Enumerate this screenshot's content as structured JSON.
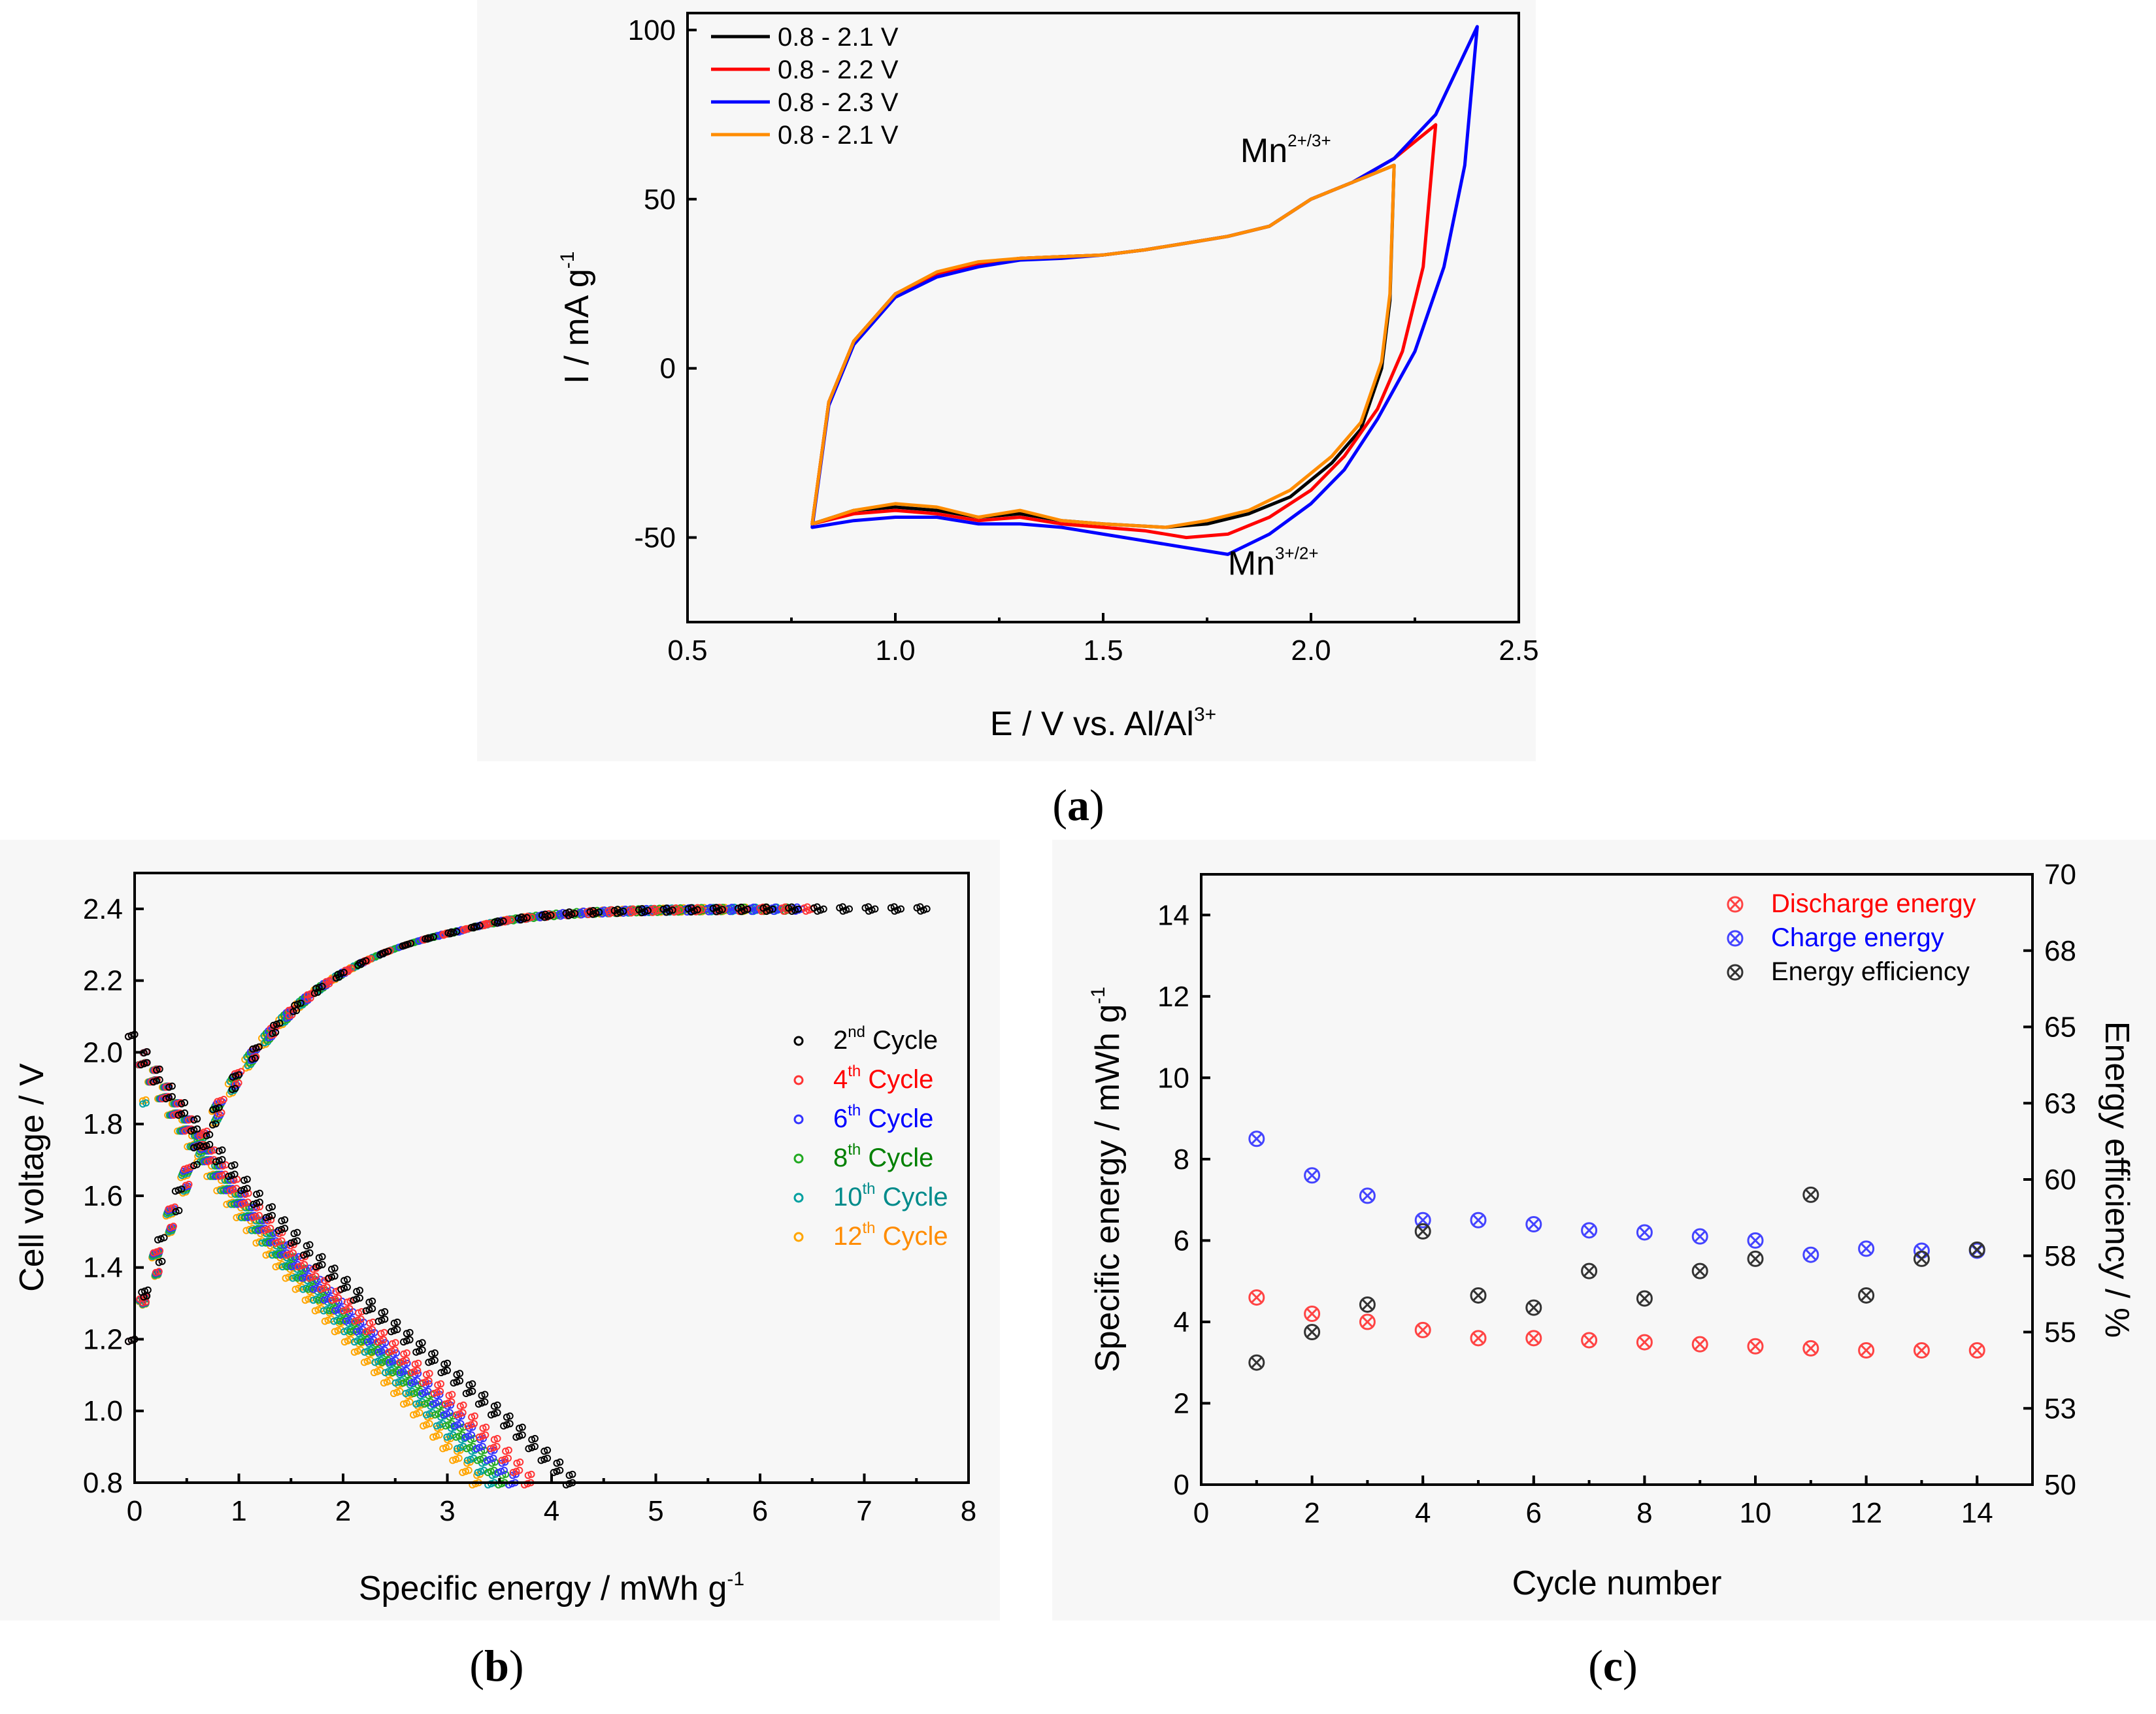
{
  "panels": {
    "a": {
      "label_open": "(",
      "label_letter": "a",
      "label_close": ")"
    },
    "b": {
      "label_open": "(",
      "label_letter": "b",
      "label_close": ")"
    },
    "c": {
      "label_open": "(",
      "label_letter": "c",
      "label_close": ")"
    }
  },
  "chart_data": [
    {
      "id": "a",
      "type": "line",
      "xlabel": {
        "main": "E / V vs. Al/Al",
        "sup": "3+"
      },
      "ylabel": {
        "main": "I / mA g",
        "sup": "-1"
      },
      "xlim": [
        0.5,
        2.5
      ],
      "ylim": [
        -75,
        105
      ],
      "xticks": [
        0.5,
        1.0,
        1.5,
        2.0,
        2.5
      ],
      "xtick_labels": [
        "0.5",
        "1.0",
        "1.5",
        "2.0",
        "2.5"
      ],
      "yticks": [
        -50,
        0,
        50,
        100
      ],
      "ytick_labels": [
        "-50",
        "0",
        "50",
        "100"
      ],
      "legend_position": "top-left",
      "annotations": [
        {
          "base": "Mn",
          "sup": "2+/3+",
          "x": 1.83,
          "y": 61
        },
        {
          "base": "Mn",
          "sup": "3+/2+",
          "x": 1.8,
          "y": -61
        }
      ],
      "series": [
        {
          "name": "0.8 - 2.1 V",
          "color": "#000000",
          "vmax": 2.2,
          "anodic": [
            [
              0.8,
              -46
            ],
            [
              0.84,
              -10
            ],
            [
              0.9,
              8
            ],
            [
              1.0,
              22
            ],
            [
              1.1,
              28
            ],
            [
              1.2,
              31
            ],
            [
              1.3,
              32.5
            ],
            [
              1.4,
              33
            ],
            [
              1.5,
              33.5
            ],
            [
              1.6,
              35
            ],
            [
              1.7,
              37
            ],
            [
              1.8,
              39
            ],
            [
              1.9,
              42
            ],
            [
              1.95,
              46
            ],
            [
              2.0,
              50
            ],
            [
              2.1,
              55
            ],
            [
              2.2,
              60
            ]
          ],
          "cathodic": [
            [
              2.2,
              60
            ],
            [
              2.19,
              20
            ],
            [
              2.17,
              0
            ],
            [
              2.12,
              -18
            ],
            [
              2.05,
              -28
            ],
            [
              1.95,
              -38
            ],
            [
              1.85,
              -43
            ],
            [
              1.75,
              -46
            ],
            [
              1.65,
              -47
            ],
            [
              1.5,
              -46
            ],
            [
              1.4,
              -45
            ],
            [
              1.3,
              -43
            ],
            [
              1.2,
              -44
            ],
            [
              1.1,
              -42
            ],
            [
              1.0,
              -41
            ],
            [
              0.9,
              -42
            ],
            [
              0.8,
              -46
            ]
          ]
        },
        {
          "name": "0.8 - 2.2 V",
          "color": "#ff0000",
          "vmax": 2.3,
          "anodic": [
            [
              0.8,
              -46
            ],
            [
              0.84,
              -10
            ],
            [
              0.9,
              8
            ],
            [
              1.0,
              22
            ],
            [
              1.1,
              28
            ],
            [
              1.2,
              31
            ],
            [
              1.3,
              32.5
            ],
            [
              1.4,
              33
            ],
            [
              1.5,
              33.5
            ],
            [
              1.6,
              35
            ],
            [
              1.7,
              37
            ],
            [
              1.8,
              39
            ],
            [
              1.9,
              42
            ],
            [
              1.95,
              46
            ],
            [
              2.0,
              50
            ],
            [
              2.1,
              55
            ],
            [
              2.2,
              62
            ],
            [
              2.3,
              72
            ]
          ],
          "cathodic": [
            [
              2.3,
              72
            ],
            [
              2.27,
              30
            ],
            [
              2.22,
              5
            ],
            [
              2.16,
              -12
            ],
            [
              2.08,
              -26
            ],
            [
              2.0,
              -36
            ],
            [
              1.9,
              -44
            ],
            [
              1.8,
              -49
            ],
            [
              1.7,
              -50
            ],
            [
              1.6,
              -48
            ],
            [
              1.5,
              -47
            ],
            [
              1.4,
              -46
            ],
            [
              1.3,
              -44
            ],
            [
              1.2,
              -45
            ],
            [
              1.1,
              -43
            ],
            [
              1.0,
              -42
            ],
            [
              0.9,
              -43
            ],
            [
              0.8,
              -46
            ]
          ]
        },
        {
          "name": "0.8 - 2.3 V",
          "color": "#0000ff",
          "vmax": 2.4,
          "anodic": [
            [
              0.8,
              -47
            ],
            [
              0.84,
              -11
            ],
            [
              0.9,
              7
            ],
            [
              1.0,
              21
            ],
            [
              1.1,
              27
            ],
            [
              1.2,
              30
            ],
            [
              1.3,
              32
            ],
            [
              1.4,
              32.5
            ],
            [
              1.5,
              33.5
            ],
            [
              1.6,
              35
            ],
            [
              1.7,
              37
            ],
            [
              1.8,
              39
            ],
            [
              1.9,
              42
            ],
            [
              1.95,
              46
            ],
            [
              2.0,
              50
            ],
            [
              2.1,
              55
            ],
            [
              2.2,
              62
            ],
            [
              2.3,
              75
            ],
            [
              2.4,
              101
            ]
          ],
          "cathodic": [
            [
              2.4,
              101
            ],
            [
              2.37,
              60
            ],
            [
              2.32,
              30
            ],
            [
              2.25,
              5
            ],
            [
              2.16,
              -15
            ],
            [
              2.08,
              -30
            ],
            [
              2.0,
              -40
            ],
            [
              1.9,
              -49
            ],
            [
              1.8,
              -55
            ],
            [
              1.7,
              -53
            ],
            [
              1.6,
              -51
            ],
            [
              1.5,
              -49
            ],
            [
              1.4,
              -47
            ],
            [
              1.3,
              -46
            ],
            [
              1.2,
              -46
            ],
            [
              1.1,
              -44
            ],
            [
              1.0,
              -44
            ],
            [
              0.9,
              -45
            ],
            [
              0.8,
              -47
            ]
          ]
        },
        {
          "name": "0.8 - 2.1 V",
          "color": "#ff8c00",
          "vmax": 2.2,
          "anodic": [
            [
              0.8,
              -46
            ],
            [
              0.84,
              -10
            ],
            [
              0.9,
              8
            ],
            [
              1.0,
              22
            ],
            [
              1.1,
              28.5
            ],
            [
              1.2,
              31.5
            ],
            [
              1.3,
              32.5
            ],
            [
              1.4,
              33
            ],
            [
              1.5,
              33.5
            ],
            [
              1.6,
              35
            ],
            [
              1.7,
              37
            ],
            [
              1.8,
              39
            ],
            [
              1.9,
              42
            ],
            [
              1.95,
              46
            ],
            [
              2.0,
              50
            ],
            [
              2.1,
              55
            ],
            [
              2.2,
              60
            ]
          ],
          "cathodic": [
            [
              2.2,
              60
            ],
            [
              2.19,
              22
            ],
            [
              2.17,
              2
            ],
            [
              2.12,
              -16
            ],
            [
              2.05,
              -26
            ],
            [
              1.95,
              -36
            ],
            [
              1.85,
              -42
            ],
            [
              1.75,
              -45
            ],
            [
              1.65,
              -47
            ],
            [
              1.5,
              -46
            ],
            [
              1.4,
              -45
            ],
            [
              1.3,
              -42
            ],
            [
              1.2,
              -44
            ],
            [
              1.1,
              -41
            ],
            [
              1.0,
              -40
            ],
            [
              0.9,
              -42
            ],
            [
              0.8,
              -46
            ]
          ]
        }
      ]
    },
    {
      "id": "b",
      "type": "scatter",
      "xlabel": {
        "main": "Specific energy / mWh g",
        "sup": "-1"
      },
      "ylabel": {
        "main": "Cell voltage / V",
        "sup": ""
      },
      "xlim": [
        0,
        8
      ],
      "ylim": [
        0.8,
        2.5
      ],
      "xticks": [
        0,
        1,
        2,
        3,
        4,
        5,
        6,
        7,
        8
      ],
      "xtick_labels": [
        "0",
        "1",
        "2",
        "3",
        "4",
        "5",
        "6",
        "7",
        "8"
      ],
      "yticks": [
        0.8,
        1.0,
        1.2,
        1.4,
        1.6,
        1.8,
        2.0,
        2.2,
        2.4
      ],
      "ytick_labels": [
        "0.8",
        "1.0",
        "1.2",
        "1.4",
        "1.6",
        "1.8",
        "2.0",
        "2.2",
        "2.4"
      ],
      "legend_position": "right",
      "series": [
        {
          "name_pre": "2",
          "name_sup": "nd",
          "name_post": " Cycle",
          "color": "#000000",
          "text_color": "#000000",
          "charge_end": 7.6,
          "discharge_end": 4.2
        },
        {
          "name_pre": "4",
          "name_sup": "th",
          "name_post": " Cycle",
          "color": "#ff3333",
          "text_color": "#ff0000",
          "charge_end": 6.5,
          "discharge_end": 3.8
        },
        {
          "name_pre": "6",
          "name_sup": "th",
          "name_post": " Cycle",
          "color": "#3333ff",
          "text_color": "#0000ff",
          "charge_end": 6.4,
          "discharge_end": 3.65
        },
        {
          "name_pre": "8",
          "name_sup": "th",
          "name_post": " Cycle",
          "color": "#22aa22",
          "text_color": "#008000",
          "charge_end": 6.3,
          "discharge_end": 3.55
        },
        {
          "name_pre": "10",
          "name_sup": "th",
          "name_post": " Cycle",
          "color": "#00a0a0",
          "text_color": "#008b8b",
          "charge_end": 6.2,
          "discharge_end": 3.45
        },
        {
          "name_pre": "12",
          "name_sup": "th",
          "name_post": " Cycle",
          "color": "#ffa500",
          "text_color": "#ff8c00",
          "charge_end": 6.1,
          "discharge_end": 3.3
        }
      ]
    },
    {
      "id": "c",
      "type": "scatter",
      "xlabel": {
        "main": "Cycle number",
        "sup": ""
      },
      "ylabel": {
        "main": "Specific energy / mWh g",
        "sup": "-1"
      },
      "y2label": {
        "main": "Energy efficiency / %",
        "sup": ""
      },
      "xlim": [
        0,
        15
      ],
      "ylim": [
        0,
        15
      ],
      "y2lim": [
        50,
        70
      ],
      "xticks": [
        0,
        2,
        4,
        6,
        8,
        10,
        12,
        14
      ],
      "xtick_labels": [
        "0",
        "2",
        "4",
        "6",
        "8",
        "10",
        "12",
        "14"
      ],
      "yticks": [
        0,
        2,
        4,
        6,
        8,
        10,
        12,
        14
      ],
      "ytick_labels": [
        "0",
        "2",
        "4",
        "6",
        "8",
        "10",
        "12",
        "14"
      ],
      "y2ticks": [
        50,
        52.5,
        55,
        57.5,
        60,
        62.5,
        65,
        67.5,
        70
      ],
      "y2tick_labels": [
        "50",
        "53",
        "55",
        "58",
        "60",
        "63",
        "65",
        "68",
        "70"
      ],
      "legend_position": "top-right",
      "series": [
        {
          "name": "Discharge energy",
          "color": "#ff4444",
          "text_color": "#ff0000",
          "axis": "left",
          "x": [
            1,
            2,
            3,
            4,
            5,
            6,
            7,
            8,
            9,
            10,
            11,
            12,
            13,
            14
          ],
          "values": [
            4.6,
            4.2,
            4.0,
            3.8,
            3.6,
            3.6,
            3.55,
            3.5,
            3.45,
            3.4,
            3.35,
            3.3,
            3.3,
            3.3
          ]
        },
        {
          "name": "Charge energy",
          "color": "#4444ff",
          "text_color": "#0000ff",
          "axis": "left",
          "x": [
            1,
            2,
            3,
            4,
            5,
            6,
            7,
            8,
            9,
            10,
            11,
            12,
            13,
            14
          ],
          "values": [
            8.5,
            7.6,
            7.1,
            6.5,
            6.5,
            6.4,
            6.25,
            6.2,
            6.1,
            6.0,
            5.65,
            5.8,
            5.75,
            5.75
          ]
        },
        {
          "name": "Energy efficiency",
          "color": "#333333",
          "text_color": "#000000",
          "axis": "right",
          "x": [
            1,
            2,
            3,
            4,
            5,
            6,
            7,
            8,
            9,
            10,
            11,
            12,
            13,
            14
          ],
          "values": [
            54.0,
            55.0,
            55.9,
            58.3,
            56.2,
            55.8,
            57.0,
            56.1,
            57.0,
            57.4,
            59.5,
            56.2,
            57.4,
            57.7
          ]
        }
      ]
    }
  ]
}
